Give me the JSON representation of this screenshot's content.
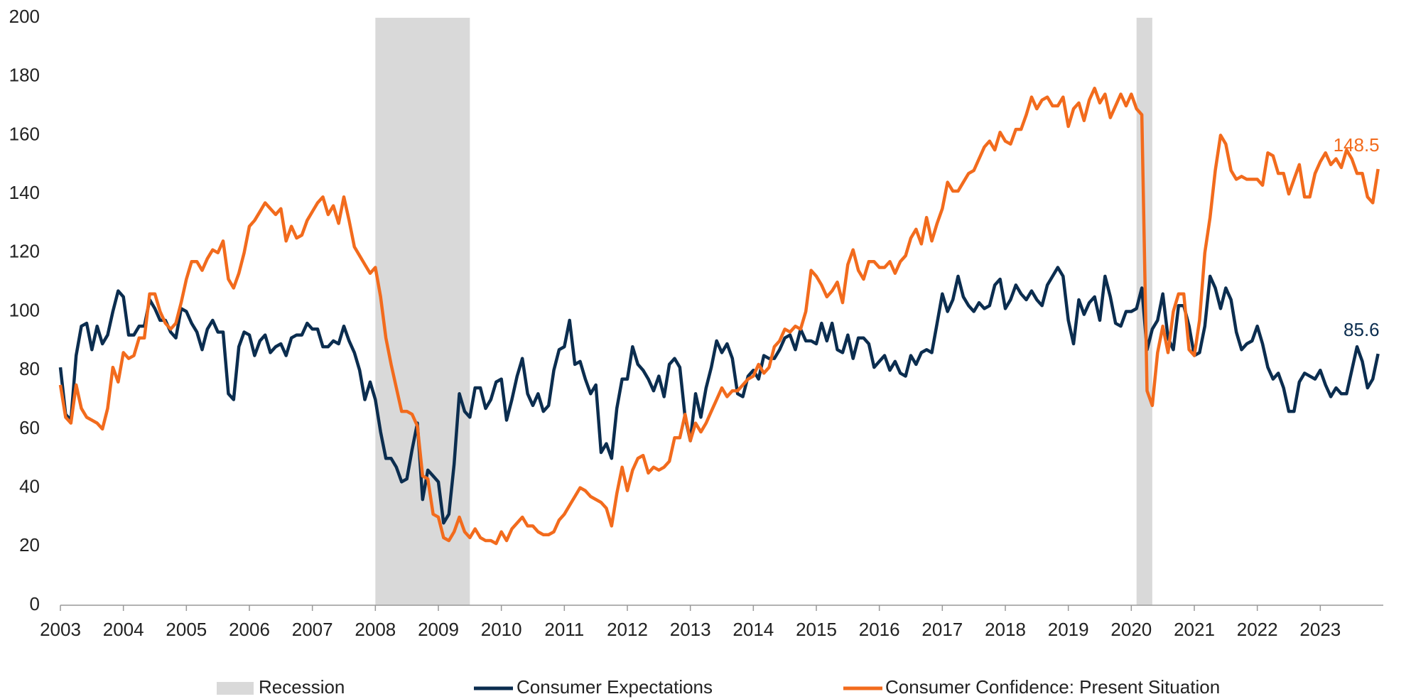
{
  "chart_data": {
    "type": "line",
    "xlim": [
      2003,
      2024
    ],
    "ylim": [
      0,
      200
    ],
    "xticks": [
      2003,
      2004,
      2005,
      2006,
      2007,
      2008,
      2009,
      2010,
      2011,
      2012,
      2013,
      2014,
      2015,
      2016,
      2017,
      2018,
      2019,
      2020,
      2021,
      2022,
      2023
    ],
    "yticks": [
      0,
      20,
      40,
      60,
      80,
      100,
      120,
      140,
      160,
      180,
      200
    ],
    "recession": {
      "name": "Recession",
      "color": "#d9d9d9",
      "spans": [
        [
          2008,
          2009.5
        ],
        [
          2020.083,
          2020.333
        ]
      ]
    },
    "x": [
      2003,
      2003.083,
      2003.167,
      2003.25,
      2003.333,
      2003.417,
      2003.5,
      2003.583,
      2003.667,
      2003.75,
      2003.833,
      2003.917,
      2004,
      2004.083,
      2004.167,
      2004.25,
      2004.333,
      2004.417,
      2004.5,
      2004.583,
      2004.667,
      2004.75,
      2004.833,
      2004.917,
      2005,
      2005.083,
      2005.167,
      2005.25,
      2005.333,
      2005.417,
      2005.5,
      2005.583,
      2005.667,
      2005.75,
      2005.833,
      2005.917,
      2006,
      2006.083,
      2006.167,
      2006.25,
      2006.333,
      2006.417,
      2006.5,
      2006.583,
      2006.667,
      2006.75,
      2006.833,
      2006.917,
      2007,
      2007.083,
      2007.167,
      2007.25,
      2007.333,
      2007.417,
      2007.5,
      2007.583,
      2007.667,
      2007.75,
      2007.833,
      2007.917,
      2008,
      2008.083,
      2008.167,
      2008.25,
      2008.333,
      2008.417,
      2008.5,
      2008.583,
      2008.667,
      2008.75,
      2008.833,
      2008.917,
      2009,
      2009.083,
      2009.167,
      2009.25,
      2009.333,
      2009.417,
      2009.5,
      2009.583,
      2009.667,
      2009.75,
      2009.833,
      2009.917,
      2010,
      2010.083,
      2010.167,
      2010.25,
      2010.333,
      2010.417,
      2010.5,
      2010.583,
      2010.667,
      2010.75,
      2010.833,
      2010.917,
      2011,
      2011.083,
      2011.167,
      2011.25,
      2011.333,
      2011.417,
      2011.5,
      2011.583,
      2011.667,
      2011.75,
      2011.833,
      2011.917,
      2012,
      2012.083,
      2012.167,
      2012.25,
      2012.333,
      2012.417,
      2012.5,
      2012.583,
      2012.667,
      2012.75,
      2012.833,
      2012.917,
      2013,
      2013.083,
      2013.167,
      2013.25,
      2013.333,
      2013.417,
      2013.5,
      2013.583,
      2013.667,
      2013.75,
      2013.833,
      2013.917,
      2014,
      2014.083,
      2014.167,
      2014.25,
      2014.333,
      2014.417,
      2014.5,
      2014.583,
      2014.667,
      2014.75,
      2014.833,
      2014.917,
      2015,
      2015.083,
      2015.167,
      2015.25,
      2015.333,
      2015.417,
      2015.5,
      2015.583,
      2015.667,
      2015.75,
      2015.833,
      2015.917,
      2016,
      2016.083,
      2016.167,
      2016.25,
      2016.333,
      2016.417,
      2016.5,
      2016.583,
      2016.667,
      2016.75,
      2016.833,
      2016.917,
      2017,
      2017.083,
      2017.167,
      2017.25,
      2017.333,
      2017.417,
      2017.5,
      2017.583,
      2017.667,
      2017.75,
      2017.833,
      2017.917,
      2018,
      2018.083,
      2018.167,
      2018.25,
      2018.333,
      2018.417,
      2018.5,
      2018.583,
      2018.667,
      2018.75,
      2018.833,
      2018.917,
      2019,
      2019.083,
      2019.167,
      2019.25,
      2019.333,
      2019.417,
      2019.5,
      2019.583,
      2019.667,
      2019.75,
      2019.833,
      2019.917,
      2020,
      2020.083,
      2020.167,
      2020.25,
      2020.333,
      2020.417,
      2020.5,
      2020.583,
      2020.667,
      2020.75,
      2020.833,
      2020.917,
      2021,
      2021.083,
      2021.167,
      2021.25,
      2021.333,
      2021.417,
      2021.5,
      2021.583,
      2021.667,
      2021.75,
      2021.833,
      2021.917,
      2022,
      2022.083,
      2022.167,
      2022.25,
      2022.333,
      2022.417,
      2022.5,
      2022.583,
      2022.667,
      2022.75,
      2022.833,
      2022.917,
      2023,
      2023.083,
      2023.167,
      2023.25,
      2023.333,
      2023.417,
      2023.5,
      2023.583,
      2023.667,
      2023.75,
      2023.833,
      2023.917
    ],
    "series": [
      {
        "name": "Consumer Expectations",
        "color": "#0b2d4f",
        "values": [
          81,
          65,
          63,
          85,
          95,
          96,
          87,
          95,
          89,
          92,
          100,
          107,
          105,
          92,
          92,
          95,
          95,
          104,
          101,
          97,
          97,
          93,
          91,
          101,
          100,
          96,
          93,
          87,
          94,
          97,
          93,
          93,
          72,
          70,
          88,
          93,
          92,
          85,
          90,
          92,
          86,
          88,
          89,
          85,
          91,
          92,
          92,
          96,
          94,
          94,
          88,
          88,
          90,
          89,
          95,
          90,
          86,
          80,
          70,
          76,
          70,
          59,
          50,
          50,
          47,
          42,
          43,
          53,
          62,
          36,
          46,
          44,
          42,
          28,
          31,
          48,
          72,
          66,
          64,
          74,
          74,
          67,
          70,
          76,
          77,
          63,
          70,
          78,
          84,
          72,
          68,
          72,
          66,
          68,
          80,
          87,
          88,
          97,
          82,
          83,
          77,
          72,
          75,
          52,
          55,
          50,
          67,
          77,
          77,
          88,
          82,
          80,
          77,
          73,
          78,
          71,
          82,
          84,
          81,
          64,
          56,
          72,
          64,
          74,
          81,
          90,
          86,
          89,
          84,
          72,
          71,
          78,
          80,
          77,
          85,
          84,
          84,
          87,
          91,
          92,
          87,
          94,
          90,
          90,
          89,
          96,
          90,
          96,
          87,
          86,
          92,
          84,
          91,
          91,
          89,
          81,
          83,
          85,
          80,
          83,
          79,
          78,
          85,
          82,
          86,
          87,
          86,
          96,
          106,
          100,
          104,
          112,
          105,
          102,
          100,
          103,
          101,
          102,
          109,
          111,
          101,
          104,
          109,
          106,
          104,
          107,
          104,
          102,
          109,
          112,
          115,
          112,
          97,
          89,
          104,
          99,
          103,
          105,
          97,
          112,
          105,
          96,
          95,
          100,
          100,
          101,
          108,
          87,
          94,
          97,
          106,
          91,
          87,
          102,
          102,
          95,
          85,
          86,
          95,
          112,
          108,
          101,
          108,
          104,
          93,
          87,
          89,
          90,
          95,
          89,
          81,
          77,
          79,
          74,
          66,
          66,
          76,
          79,
          78,
          77,
          80,
          75,
          71,
          74,
          72,
          72,
          80,
          88,
          83,
          74,
          77,
          85.6
        ]
      },
      {
        "name": "Consumer Confidence: Present Situation",
        "color": "#f26b1d",
        "values": [
          75,
          64,
          62,
          75,
          67,
          64,
          63,
          62,
          60,
          67,
          81,
          76,
          86,
          84,
          85,
          91,
          91,
          106,
          106,
          100,
          96,
          94,
          96,
          103,
          111,
          117,
          117,
          114,
          118,
          121,
          120,
          124,
          111,
          108,
          113,
          120,
          129,
          131,
          134,
          137,
          135,
          133,
          135,
          124,
          129,
          125,
          126,
          131,
          134,
          137,
          139,
          133,
          136,
          130,
          139,
          131,
          122,
          119,
          116,
          113,
          115,
          105,
          91,
          82,
          74,
          66,
          66,
          65,
          61,
          44,
          43,
          31,
          30,
          23,
          22,
          25,
          30,
          25,
          23,
          26,
          23,
          22,
          22,
          21,
          25,
          22,
          26,
          28,
          30,
          27,
          27,
          25,
          24,
          24,
          25,
          29,
          31,
          34,
          37,
          40,
          39,
          37,
          36,
          35,
          33,
          27,
          38,
          47,
          39,
          46,
          50,
          51,
          45,
          47,
          46,
          47,
          49,
          57,
          57,
          65,
          56,
          62,
          59,
          62,
          66,
          70,
          74,
          71,
          73,
          73,
          75,
          77,
          78,
          82,
          79,
          81,
          88,
          90,
          94,
          93,
          95,
          94,
          100,
          114,
          112,
          109,
          105,
          107,
          110,
          103,
          116,
          121,
          114,
          111,
          117,
          117,
          115,
          115,
          117,
          113,
          117,
          119,
          125,
          128,
          123,
          132,
          124,
          130,
          135,
          144,
          141,
          141,
          144,
          147,
          148,
          152,
          156,
          158,
          155,
          161,
          158,
          157,
          162,
          162,
          167,
          173,
          169,
          172,
          173,
          170,
          170,
          173,
          163,
          169,
          171,
          165,
          172,
          176,
          171,
          174,
          166,
          170,
          174,
          170,
          174,
          169,
          167,
          73,
          68,
          86,
          95,
          86,
          100,
          106,
          106,
          87,
          85,
          97,
          120,
          132,
          148,
          160,
          157,
          148,
          145,
          146,
          145,
          145,
          145,
          143,
          154,
          153,
          147,
          147,
          140,
          145,
          150,
          139,
          139,
          147,
          151,
          154,
          150,
          152,
          149,
          155,
          152,
          147,
          147,
          139,
          137,
          148.5
        ]
      }
    ]
  }
}
